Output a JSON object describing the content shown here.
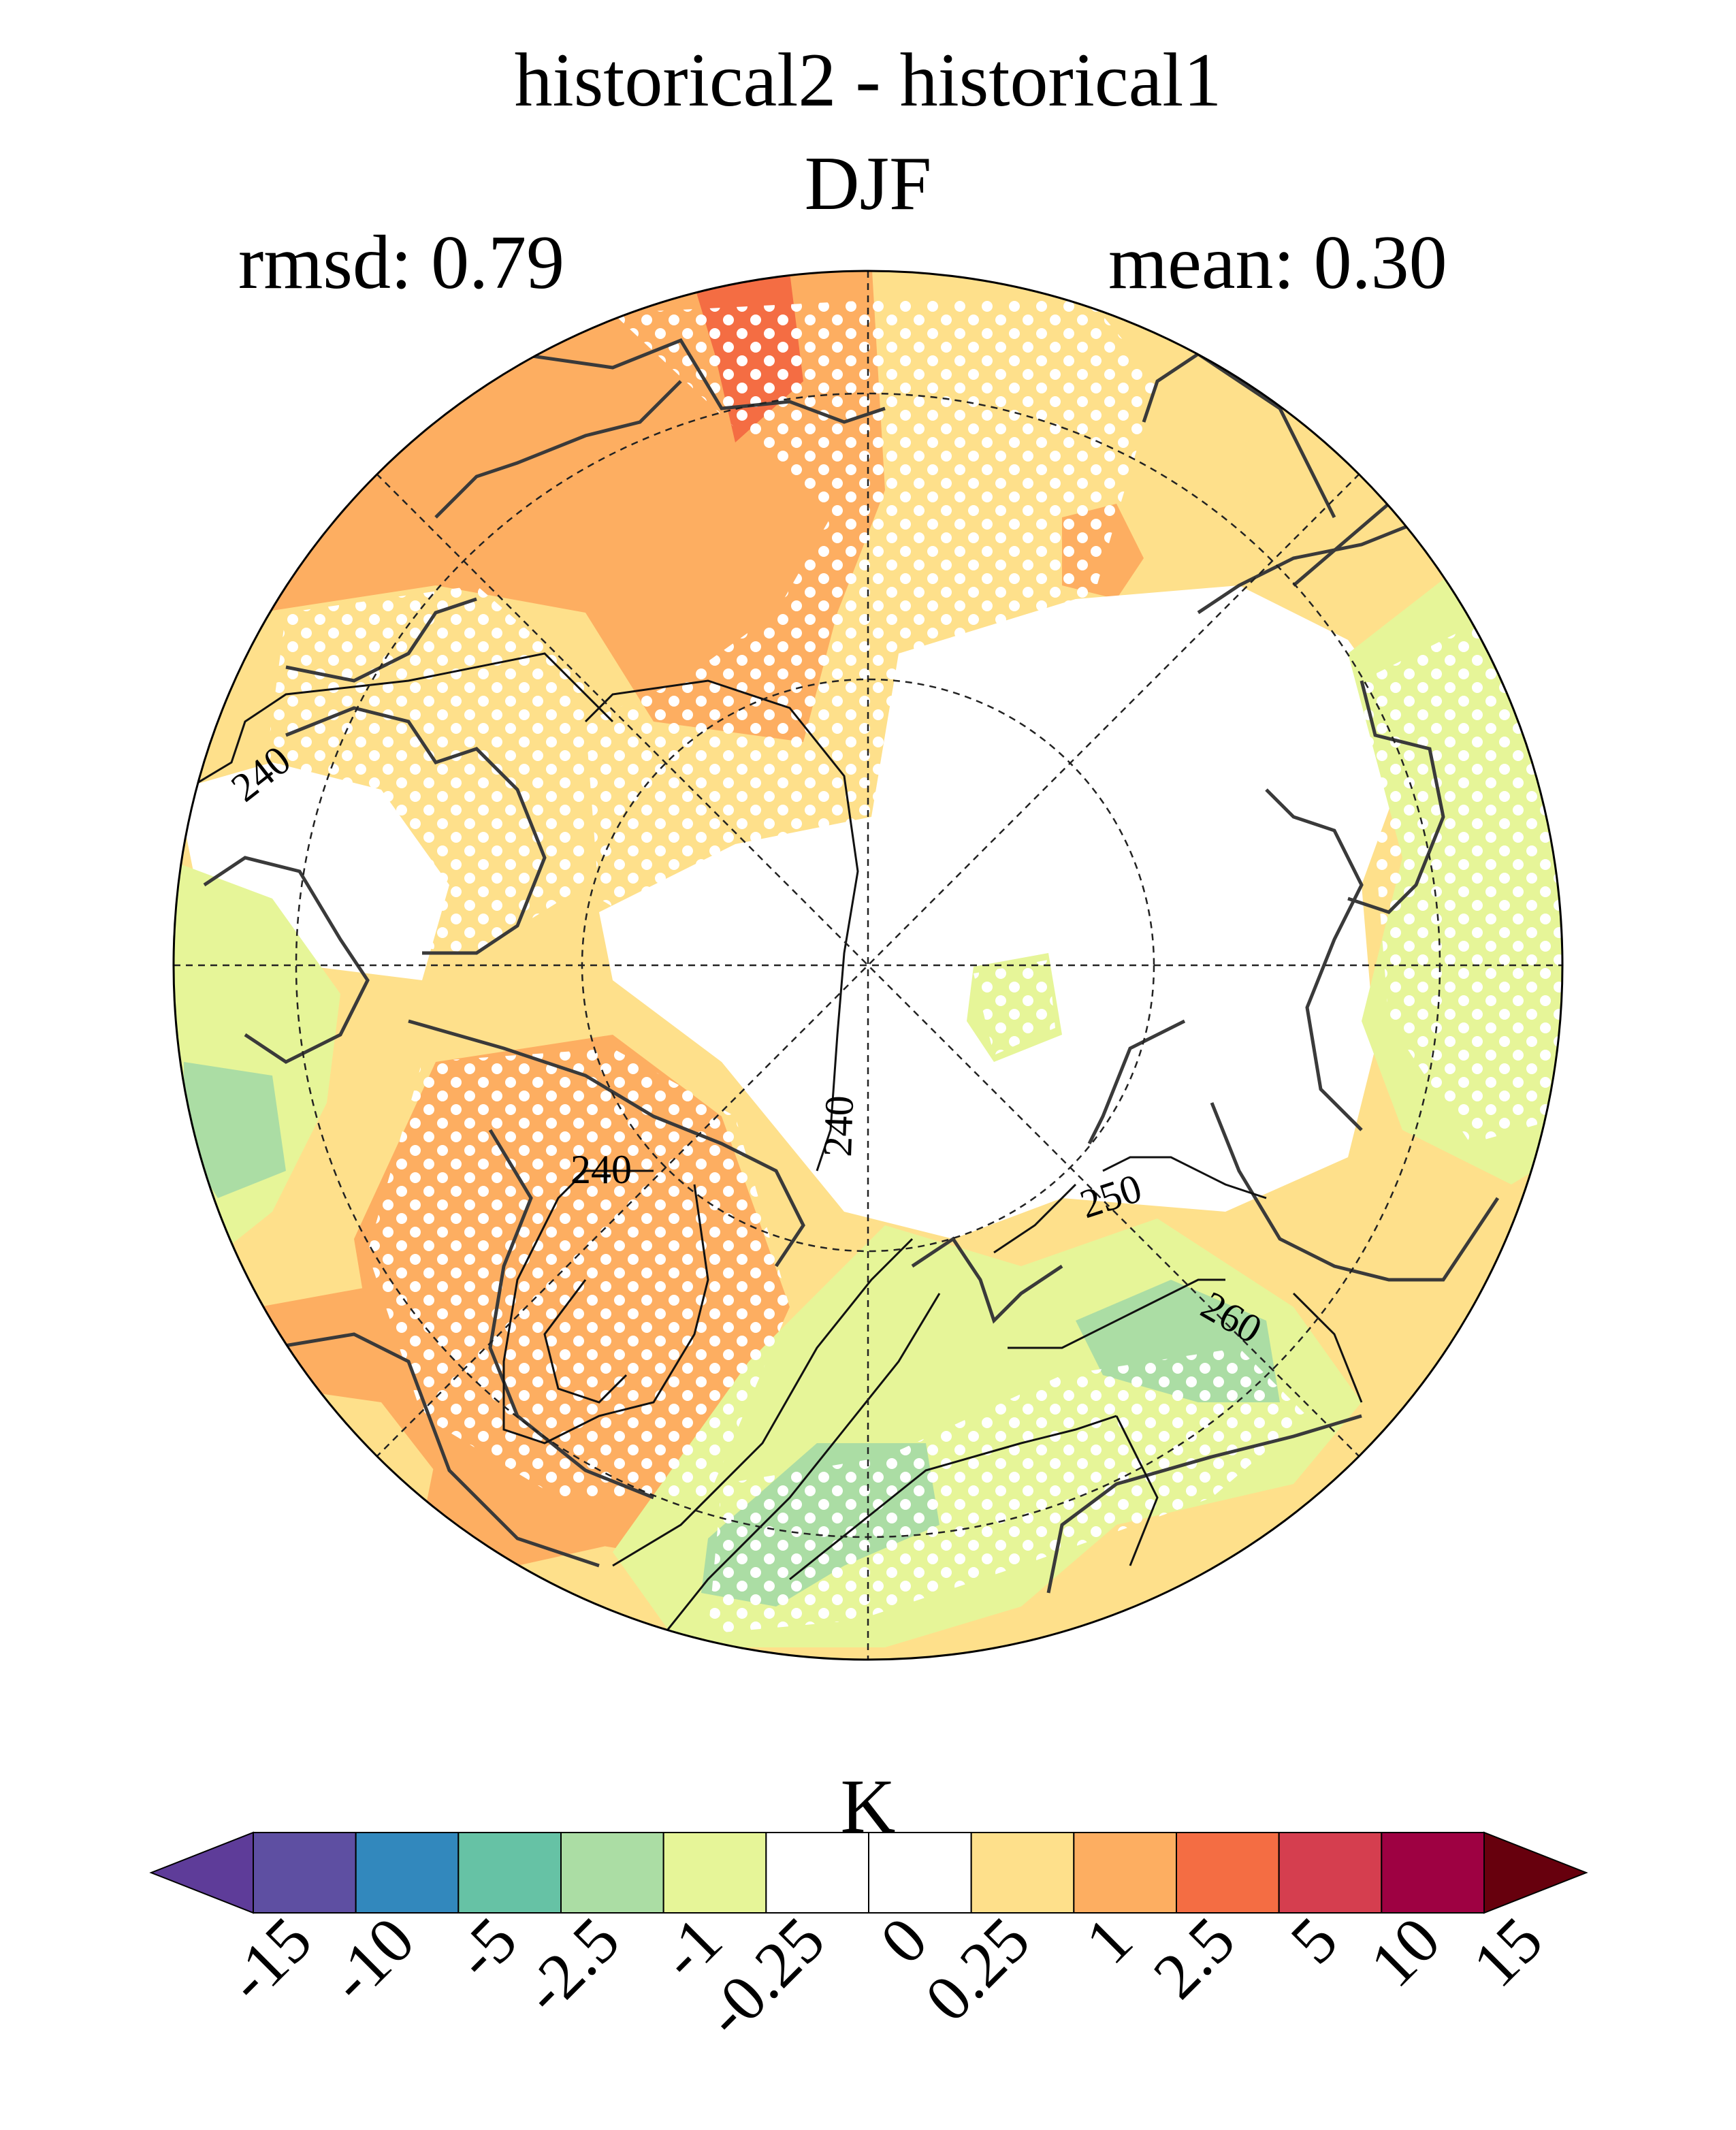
{
  "figure": {
    "title": "historical2 - historical1",
    "season": "DJF",
    "rmsd_label": "rmsd: 0.79",
    "mean_label": "mean: 0.30",
    "units": "K"
  },
  "map": {
    "projection": "north polar stereographic",
    "contour_labels": [
      "240",
      "240",
      "240",
      "240",
      "250",
      "260"
    ],
    "stippling": "dots where difference is significant"
  },
  "colorbar": {
    "ticks": [
      "-15",
      "-10",
      "-5",
      "-2.5",
      "-1",
      "-0.25",
      "0",
      "0.25",
      "1",
      "2.5",
      "5",
      "10",
      "15"
    ],
    "colors": [
      "#5e3c99",
      "#5e4fa2",
      "#3288bd",
      "#66c2a5",
      "#abdda4",
      "#e6f598",
      "#ffffff",
      "#ffffff",
      "#fee08b",
      "#fdae61",
      "#f46d43",
      "#d53e4f",
      "#9e0142",
      "#67000d"
    ],
    "extend": "both"
  }
}
